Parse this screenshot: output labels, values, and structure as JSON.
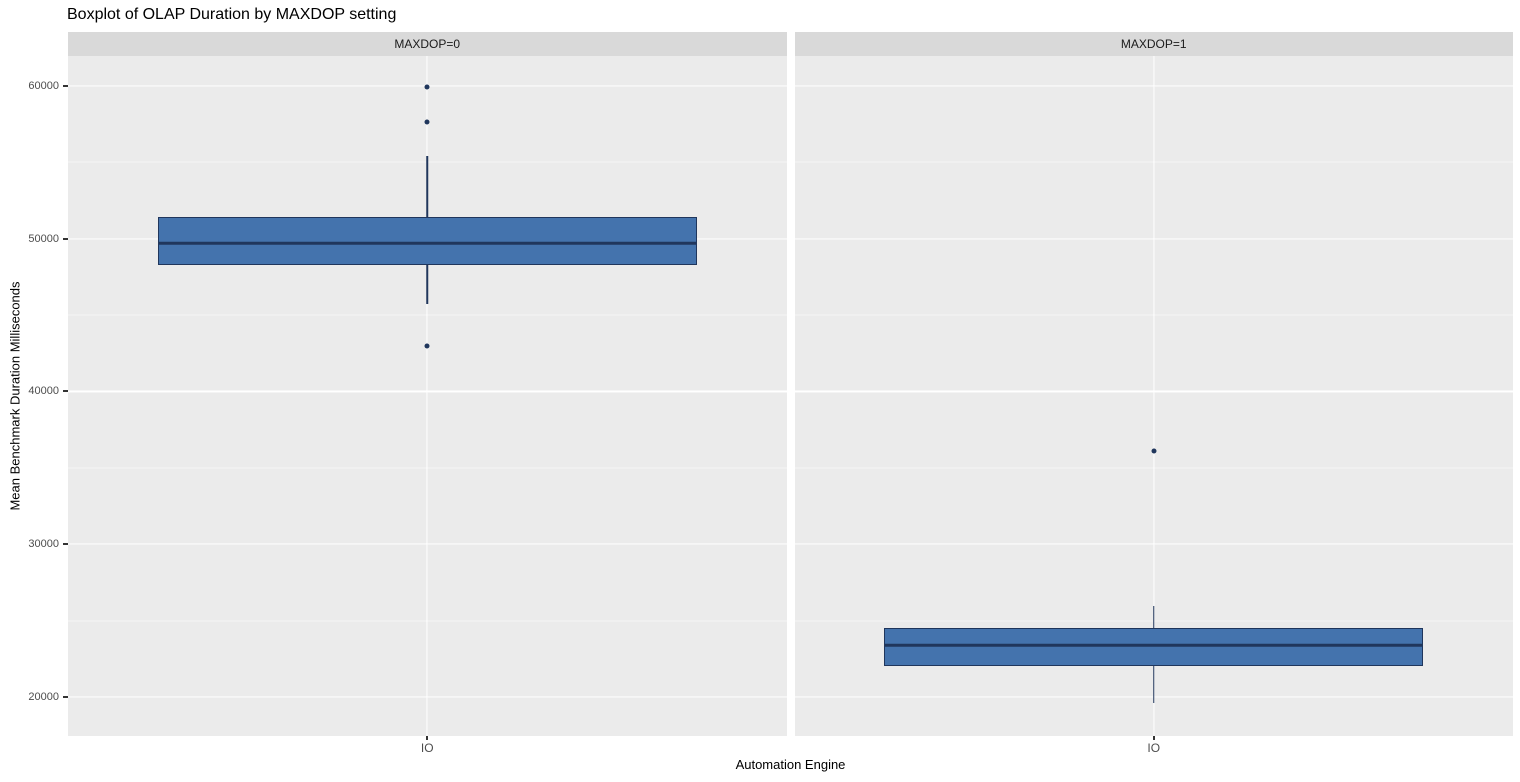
{
  "title": "Boxplot of OLAP Duration by MAXDOP setting",
  "chart_data": {
    "type": "boxplot",
    "title": "Boxplot of OLAP Duration by MAXDOP setting",
    "xlabel": "Automation Engine",
    "ylabel": "Mean Benchmark Duration Milliseconds",
    "x_category": "IO",
    "ylim": [
      17450,
      61950
    ],
    "y_major_ticks": [
      20000,
      30000,
      40000,
      50000,
      60000
    ],
    "y_minor_ticks": [
      25000,
      35000,
      45000,
      55000
    ],
    "grid": "on",
    "legend": "none",
    "facets": [
      {
        "strip_label": "MAXDOP=0",
        "category": "IO",
        "box": {
          "whisker_min": 45700,
          "q1": 48250,
          "median": 49700,
          "q3": 51400,
          "whisker_max": 55400,
          "outliers": [
            59900,
            57600,
            43000
          ]
        }
      },
      {
        "strip_label": "MAXDOP=1",
        "category": "IO",
        "box": {
          "whisker_min": 19600,
          "q1": 22000,
          "median": 23400,
          "q3": 24550,
          "whisker_max": 25950,
          "outliers": [
            36100
          ]
        }
      }
    ]
  },
  "colors": {
    "page_bg": "#FFFFFF",
    "panel_bg": "#EBEBEB",
    "strip_bg": "#D9D9D9",
    "strip_text": "#1A1A1A",
    "grid": "#FFFFFF",
    "box_fill": "#4473AD",
    "box_line": "#20365C",
    "tick_label": "#4D4D4D",
    "tick_mark": "#333333",
    "title_text": "#000000",
    "axis_title_text": "#000000"
  }
}
